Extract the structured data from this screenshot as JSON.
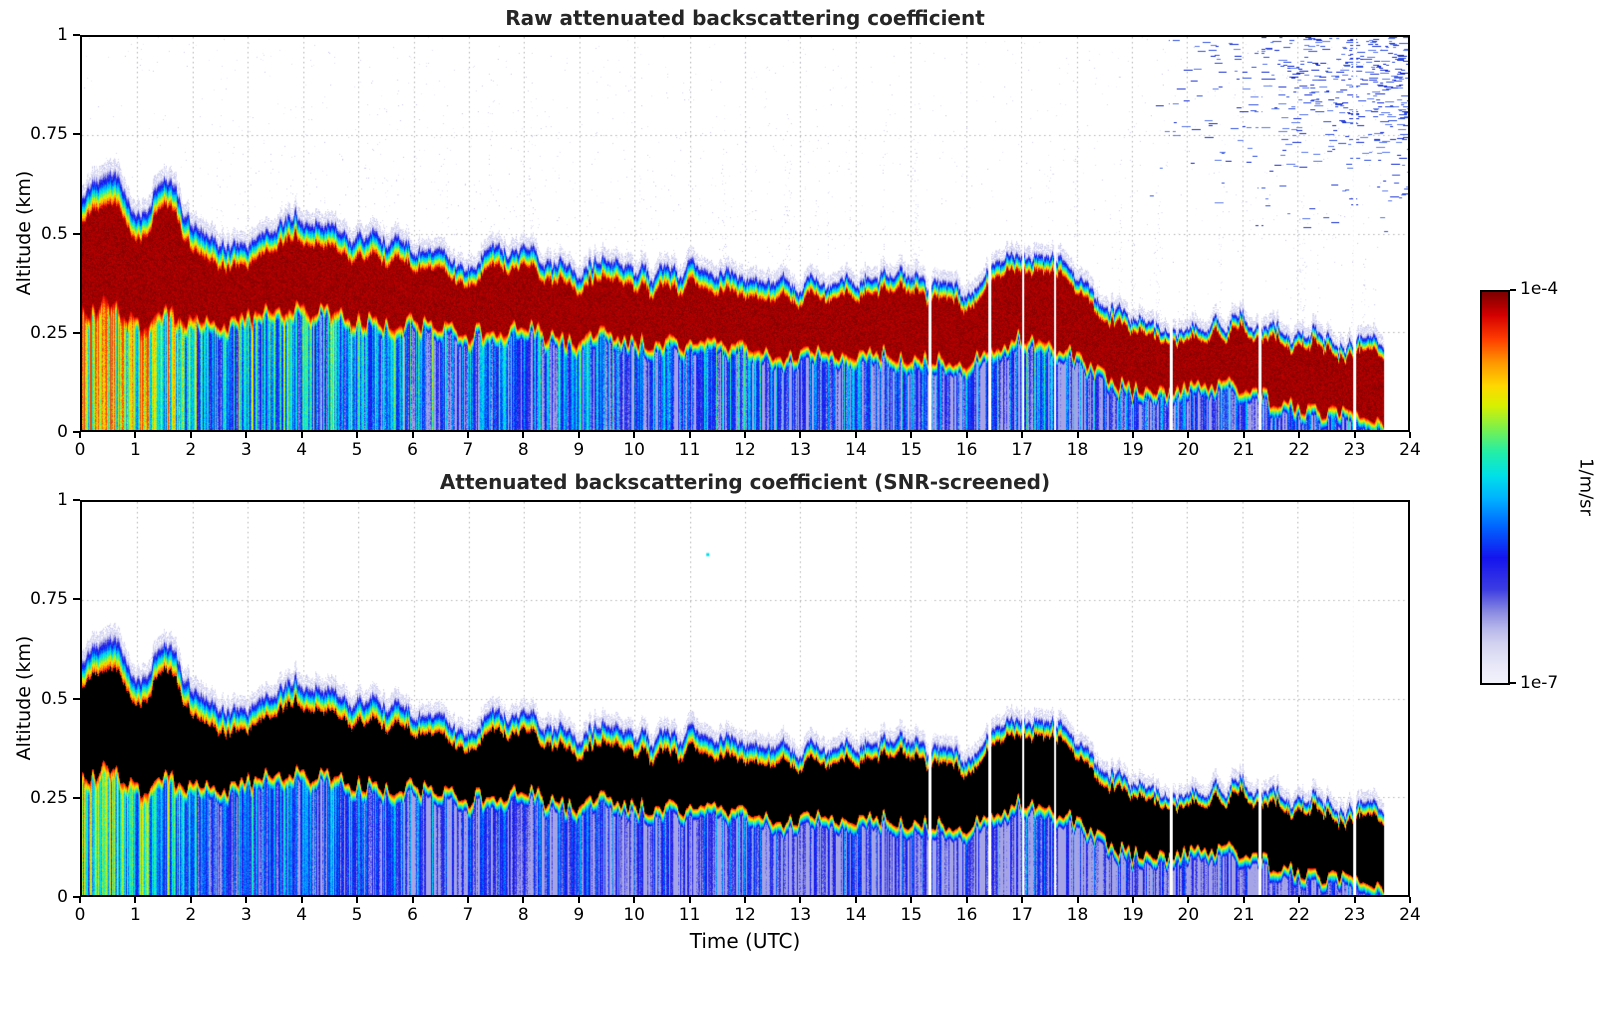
{
  "panels": [
    {
      "title": "Raw attenuated backscattering coefficient",
      "ylabel": "Altitude (km)"
    },
    {
      "title": "Attenuated backscattering coefficient (SNR-screened)",
      "ylabel": "Altitude (km)"
    }
  ],
  "xlabel": "Time (UTC)",
  "axes": {
    "xlim": [
      0,
      24
    ],
    "ylim": [
      0,
      1
    ],
    "xticks": [
      0,
      1,
      2,
      3,
      4,
      5,
      6,
      7,
      8,
      9,
      10,
      11,
      12,
      13,
      14,
      15,
      16,
      17,
      18,
      19,
      20,
      21,
      22,
      23,
      24
    ],
    "xtick_labels": [
      "0",
      "1",
      "2",
      "3",
      "4",
      "5",
      "6",
      "7",
      "8",
      "9",
      "10",
      "11",
      "12",
      "13",
      "14",
      "15",
      "16",
      "17",
      "18",
      "19",
      "20",
      "21",
      "22",
      "23",
      "24"
    ],
    "yticks": [
      0,
      0.25,
      0.5,
      0.75,
      1
    ],
    "ytick_labels": [
      "0",
      "0.25",
      "0.5",
      "0.75",
      "1"
    ],
    "grid": "dotted gray at every hour and every 0.25 km"
  },
  "colorbar": {
    "top_label": "1e-4",
    "bottom_label": "1e-7",
    "label": "1/m/sr",
    "value_min": 1e-07,
    "value_max": 0.0001,
    "scale": "log10",
    "stops": [
      [
        0,
        "#f2f2fb"
      ],
      [
        0.05,
        "#e6e6f8"
      ],
      [
        0.1,
        "#d2d2f0"
      ],
      [
        0.14,
        "#b6b6ea"
      ],
      [
        0.18,
        "#8c8ce2"
      ],
      [
        0.24,
        "#3c3ce2"
      ],
      [
        0.32,
        "#1414ee"
      ],
      [
        0.4,
        "#0064ff"
      ],
      [
        0.47,
        "#00b0ff"
      ],
      [
        0.53,
        "#00e0e8"
      ],
      [
        0.59,
        "#22eea8"
      ],
      [
        0.65,
        "#7af04e"
      ],
      [
        0.71,
        "#d8f000"
      ],
      [
        0.76,
        "#ffd800"
      ],
      [
        0.82,
        "#ff9600"
      ],
      [
        0.88,
        "#ff3c00"
      ],
      [
        0.94,
        "#d40000"
      ],
      [
        1,
        "#7c0000"
      ]
    ]
  },
  "chart_data": [
    {
      "type": "heatmap",
      "title": "Raw attenuated backscattering coefficient",
      "xlabel": "Time (UTC)",
      "ylabel": "Altitude (km)",
      "xlim": [
        0,
        24
      ],
      "ylim": [
        0,
        1
      ],
      "units": "1/m/sr",
      "value_range": [
        1e-07,
        0.0001
      ],
      "time_step_hr": 0.5,
      "layer_top_km": [
        0.6,
        0.7,
        0.55,
        0.66,
        0.52,
        0.46,
        0.5,
        0.55,
        0.55,
        0.53,
        0.51,
        0.5,
        0.48,
        0.46,
        0.44,
        0.46,
        0.48,
        0.44,
        0.42,
        0.45,
        0.42,
        0.41,
        0.42,
        0.41,
        0.41,
        0.39,
        0.38,
        0.39,
        0.38,
        0.4,
        0.39,
        0.37,
        0.36,
        0.43,
        0.46,
        0.45,
        0.41,
        0.33,
        0.28,
        0.27,
        0.28,
        0.28,
        0.29,
        0.26,
        0.25,
        0.24,
        0.23,
        0.22
      ],
      "strong_layer_top_km": [
        0.52,
        0.6,
        0.47,
        0.58,
        0.44,
        0.39,
        0.43,
        0.48,
        0.48,
        0.46,
        0.44,
        0.43,
        0.42,
        0.4,
        0.38,
        0.4,
        0.42,
        0.38,
        0.36,
        0.39,
        0.36,
        0.35,
        0.36,
        0.35,
        0.35,
        0.33,
        0.33,
        0.34,
        0.33,
        0.35,
        0.34,
        0.32,
        0.31,
        0.38,
        0.41,
        0.4,
        0.36,
        0.28,
        0.24,
        0.23,
        0.24,
        0.24,
        0.25,
        0.22,
        0.21,
        0.2,
        0.19,
        0.18
      ],
      "strong_layer_bottom_km": [
        0.3,
        0.33,
        0.27,
        0.3,
        0.28,
        0.27,
        0.29,
        0.31,
        0.31,
        0.3,
        0.29,
        0.28,
        0.28,
        0.26,
        0.25,
        0.26,
        0.27,
        0.24,
        0.23,
        0.25,
        0.23,
        0.22,
        0.23,
        0.22,
        0.22,
        0.2,
        0.19,
        0.2,
        0.19,
        0.2,
        0.19,
        0.18,
        0.17,
        0.22,
        0.24,
        0.23,
        0.19,
        0.14,
        0.11,
        0.1,
        0.11,
        0.11,
        0.12,
        0.08,
        0.06,
        0.05,
        0.04,
        0.03
      ],
      "sub_layer_intensity": [
        0.78,
        0.8,
        0.72,
        0.75,
        0.6,
        0.48,
        0.46,
        0.48,
        0.5,
        0.46,
        0.42,
        0.4,
        0.38,
        0.36,
        0.36,
        0.38,
        0.4,
        0.36,
        0.42,
        0.36,
        0.33,
        0.32,
        0.33,
        0.32,
        0.34,
        0.32,
        0.28,
        0.27,
        0.27,
        0.28,
        0.27,
        0.26,
        0.27,
        0.3,
        0.32,
        0.31,
        0.28,
        0.26,
        0.25,
        0.26,
        0.28,
        0.28,
        0.27,
        0.24,
        0.24,
        0.25,
        0.26,
        0.27
      ],
      "data_end_hr": 23.55,
      "gaps_hr": [
        [
          15.32,
          15.37
        ],
        [
          16.4,
          16.45
        ],
        [
          17.0,
          17.05
        ],
        [
          17.58,
          17.63
        ],
        [
          19.68,
          19.73
        ],
        [
          21.28,
          21.33
        ],
        [
          23.0,
          23.06
        ]
      ],
      "noise_regions": "sparse pale-lavender speckles above the aerosol layer all day; dense blue dash noise above 0.45 km after 19 UTC, increasing toward 24 UTC and 1 km"
    },
    {
      "type": "heatmap",
      "title": "Attenuated backscattering coefficient (SNR-screened)",
      "xlabel": "Time (UTC)",
      "ylabel": "Altitude (km)",
      "xlim": [
        0,
        24
      ],
      "ylim": [
        0,
        1
      ],
      "units": "1/m/sr",
      "value_range": [
        1e-07,
        0.0001
      ],
      "profiles_same_as_panel": 0,
      "screened": true,
      "saturated_rendered_as": "black",
      "noise_regions": "noise above layer removed by SNR screen",
      "isolated_speck": {
        "t_hr": 11.3,
        "alt_km": 0.87
      }
    }
  ]
}
